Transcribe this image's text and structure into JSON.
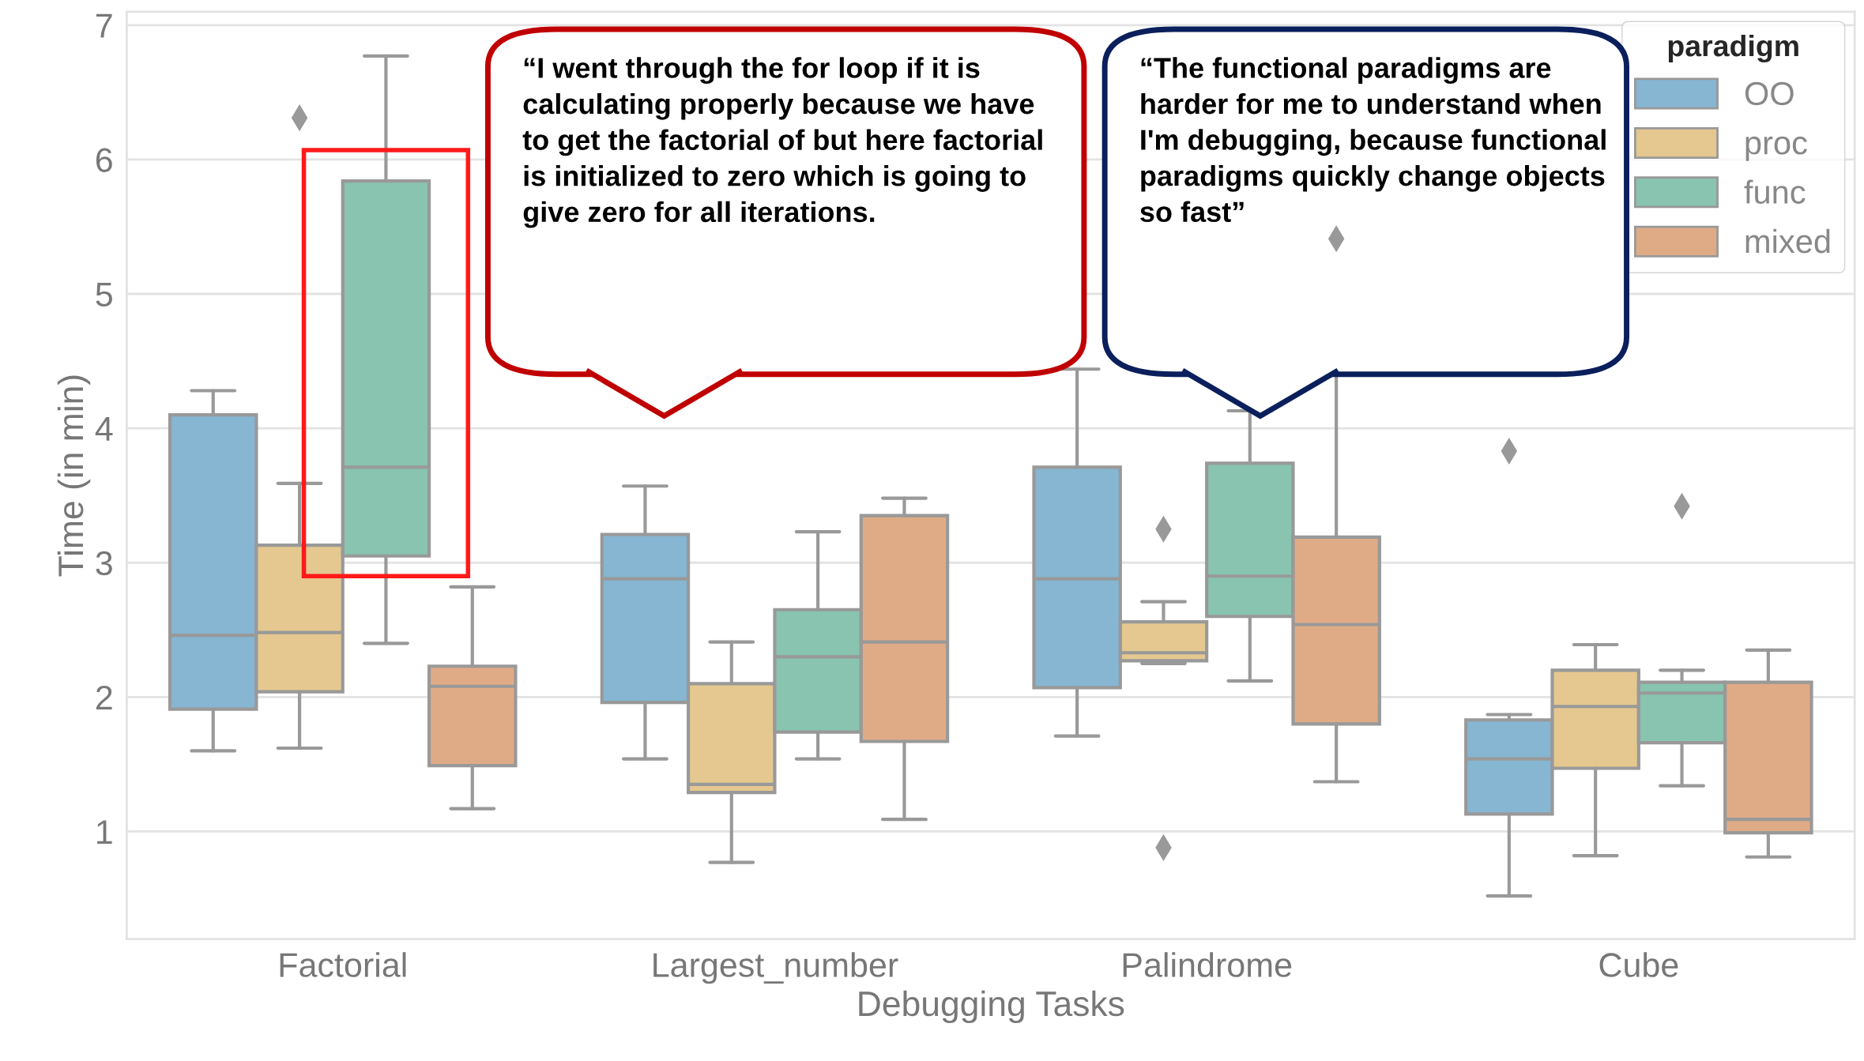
{
  "chart_data": {
    "type": "box",
    "xlabel": "Debugging Tasks",
    "ylabel": "Time (in min)",
    "legend_title": "paradigm",
    "legend": "top right",
    "grid": "y",
    "categories": [
      "Factorial",
      "Largest_number",
      "Palindrome",
      "Cube"
    ],
    "ylim": [
      0.2,
      7.1
    ],
    "yticks": [
      1,
      2,
      3,
      4,
      5,
      6,
      7
    ],
    "series": [
      {
        "name": "OO",
        "color": "#86b6d2",
        "boxes": [
          {
            "low": 1.6,
            "q1": 1.91,
            "median": 2.46,
            "q3": 4.1,
            "high": 4.28
          },
          {
            "low": 1.54,
            "q1": 1.96,
            "median": 2.88,
            "q3": 3.21,
            "high": 3.57
          },
          {
            "low": 1.71,
            "q1": 2.07,
            "median": 2.88,
            "q3": 3.71,
            "high": 4.44
          },
          {
            "low": 0.52,
            "q1": 1.13,
            "median": 1.54,
            "q3": 1.83,
            "high": 1.87,
            "outliers": [
              3.83
            ]
          }
        ]
      },
      {
        "name": "proc",
        "color": "#e5c890",
        "boxes": [
          {
            "low": 1.62,
            "q1": 2.04,
            "median": 2.48,
            "q3": 3.13,
            "high": 3.59,
            "outliers": [
              6.31
            ]
          },
          {
            "low": 0.77,
            "q1": 1.29,
            "median": 1.35,
            "q3": 2.1,
            "high": 2.41
          },
          {
            "low": 2.25,
            "q1": 2.27,
            "median": 2.33,
            "q3": 2.56,
            "high": 2.71,
            "outliers": [
              3.25,
              0.88
            ]
          },
          {
            "low": 0.82,
            "q1": 1.47,
            "median": 1.93,
            "q3": 2.2,
            "high": 2.39
          }
        ]
      },
      {
        "name": "func",
        "color": "#88c4b0",
        "boxes": [
          {
            "low": 2.4,
            "q1": 3.05,
            "median": 3.71,
            "q3": 5.84,
            "high": 6.77
          },
          {
            "low": 1.54,
            "q1": 1.74,
            "median": 2.3,
            "q3": 2.65,
            "high": 3.23
          },
          {
            "low": 2.12,
            "q1": 2.6,
            "median": 2.9,
            "q3": 3.74,
            "high": 4.13
          },
          {
            "low": 1.34,
            "q1": 1.66,
            "median": 2.03,
            "q3": 2.11,
            "high": 2.2,
            "outliers": [
              3.42
            ]
          }
        ]
      },
      {
        "name": "mixed",
        "color": "#dfab87",
        "boxes": [
          {
            "low": 1.17,
            "q1": 1.49,
            "median": 2.08,
            "q3": 2.23,
            "high": 2.82
          },
          {
            "low": 1.09,
            "q1": 1.67,
            "median": 2.41,
            "q3": 3.35,
            "high": 3.48
          },
          {
            "low": 1.37,
            "q1": 1.8,
            "median": 2.54,
            "q3": 3.19,
            "high": 4.5,
            "outliers": [
              5.41
            ]
          },
          {
            "low": 0.81,
            "q1": 0.99,
            "median": 1.09,
            "q3": 2.11,
            "high": 2.35
          }
        ]
      }
    ],
    "annotations": [
      "“I went through the for loop if it is calculating properly because we have to get the factorial of but here factorial is initialized to zero which is going to give zero for all iterations.",
      "“The functional paradigms are harder for me to understand when I'm debugging, because functional paradigms quickly change objects so fast”"
    ]
  }
}
